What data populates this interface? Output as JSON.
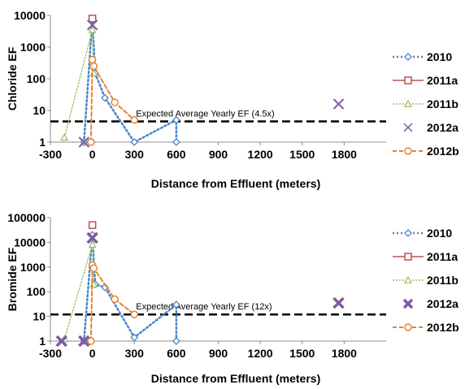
{
  "chart_data": [
    {
      "type": "scatter",
      "ylabel": "Chloride EF",
      "xlabel": "Distance from Effluent (meters)",
      "xlim": [
        -300,
        2100
      ],
      "ylim": [
        1,
        10000
      ],
      "yscale": "log",
      "xticks": [
        "-300",
        "0",
        "300",
        "600",
        "900",
        "1200",
        "1500",
        "1800"
      ],
      "yticks": [
        "1",
        "10",
        "100",
        "1000",
        "10000"
      ],
      "reference_line": {
        "value": 4.5,
        "label": "Expected Average Yearly EF (4.5x)"
      },
      "series": [
        {
          "name": "2010",
          "color": "#4a86c8",
          "x": [
            -60,
            0,
            20,
            90,
            300,
            600,
            600
          ],
          "y": [
            1,
            8000,
            150,
            25,
            1,
            5,
            1
          ]
        },
        {
          "name": "2011a",
          "color": "#c0504d",
          "x": [
            0
          ],
          "y": [
            8000
          ]
        },
        {
          "name": "2011b",
          "color": "#9bbb59",
          "x": [
            -200,
            0,
            10
          ],
          "y": [
            1.4,
            3500,
            150
          ]
        },
        {
          "name": "2012a",
          "color": "#7f5aa2",
          "x": [
            -60,
            0,
            1760
          ],
          "y": [
            1,
            5000,
            16
          ]
        },
        {
          "name": "2012b",
          "color": "#e8822f",
          "x": [
            -10,
            0,
            10,
            160,
            300
          ],
          "y": [
            1,
            400,
            250,
            18,
            5
          ]
        }
      ]
    },
    {
      "type": "scatter",
      "ylabel": "Bromide EF",
      "xlabel": "Distance from Effluent (meters)",
      "xlim": [
        -300,
        2100
      ],
      "ylim": [
        1,
        100000
      ],
      "yscale": "log",
      "xticks": [
        "-300",
        "0",
        "300",
        "600",
        "900",
        "1200",
        "1500",
        "1800"
      ],
      "yticks": [
        "1",
        "10",
        "100",
        "1000",
        "10000",
        "100000"
      ],
      "reference_line": {
        "value": 12,
        "label": "Expected Average Yearly EF (12x)"
      },
      "series": [
        {
          "name": "2010",
          "color": "#4a86c8",
          "x": [
            -60,
            0,
            20,
            90,
            300,
            600,
            600
          ],
          "y": [
            1,
            20000,
            200,
            150,
            1.4,
            30,
            1
          ]
        },
        {
          "name": "2011a",
          "color": "#c0504d",
          "x": [
            0
          ],
          "y": [
            50000
          ]
        },
        {
          "name": "2011b",
          "color": "#9bbb59",
          "x": [
            -200,
            0,
            10
          ],
          "y": [
            1.2,
            8000,
            200
          ]
        },
        {
          "name": "2012a",
          "color": "#7f5aa2",
          "x": [
            -220,
            -60,
            0,
            1760
          ],
          "y": [
            1,
            1,
            15000,
            35
          ]
        },
        {
          "name": "2012b",
          "color": "#e8822f",
          "x": [
            -10,
            0,
            10,
            160,
            300
          ],
          "y": [
            1,
            1200,
            900,
            50,
            12
          ]
        }
      ]
    }
  ]
}
